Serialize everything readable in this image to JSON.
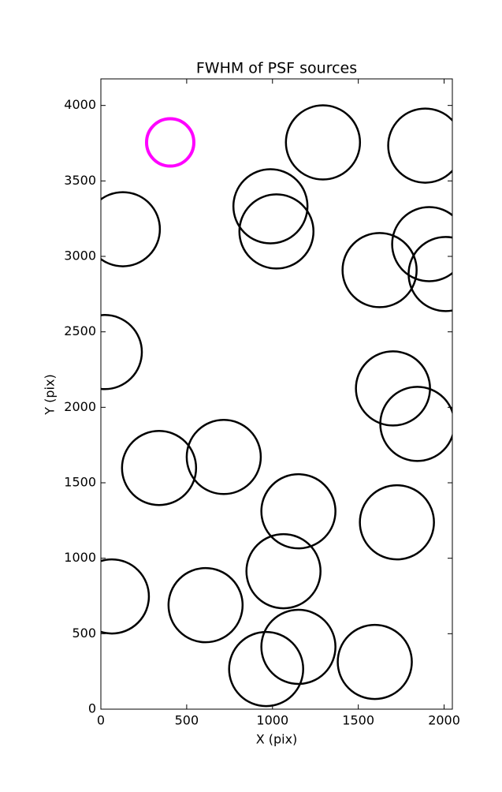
{
  "chart_data": {
    "type": "scatter",
    "title": "FWHM of PSF sources",
    "x_label": "X (pix)",
    "y_label": "Y (pix)",
    "xlim": [
      0,
      2048
    ],
    "ylim": [
      0,
      4176
    ],
    "xticks": [
      0,
      500,
      1000,
      1500,
      2000
    ],
    "yticks": [
      0,
      500,
      1000,
      1500,
      2000,
      2500,
      3000,
      3500,
      4000
    ],
    "grid": false,
    "series": [
      {
        "color": "#000000",
        "x": [
          1294,
          1890,
          988,
          1023,
          128,
          1913,
          1624,
          2009,
          23,
          1702,
          1844,
          716,
          339,
          1151,
          1725,
          1064,
          64,
          610,
          1151,
          963,
          1596
        ],
        "y": [
          3755,
          3734,
          3332,
          3165,
          3180,
          3081,
          2909,
          2883,
          2366,
          2125,
          1890,
          1671,
          1598,
          1311,
          1238,
          914,
          747,
          689,
          413,
          266,
          313
        ],
        "sizes": [
          94,
          94,
          94,
          94,
          94,
          94,
          94,
          94,
          94,
          94,
          94,
          94,
          94,
          94,
          94,
          94,
          94,
          94,
          94,
          94,
          94
        ]
      },
      {
        "color": "#ff00ff",
        "x": [
          404
        ],
        "y": [
          3755
        ],
        "sizes": [
          60
        ]
      }
    ]
  }
}
